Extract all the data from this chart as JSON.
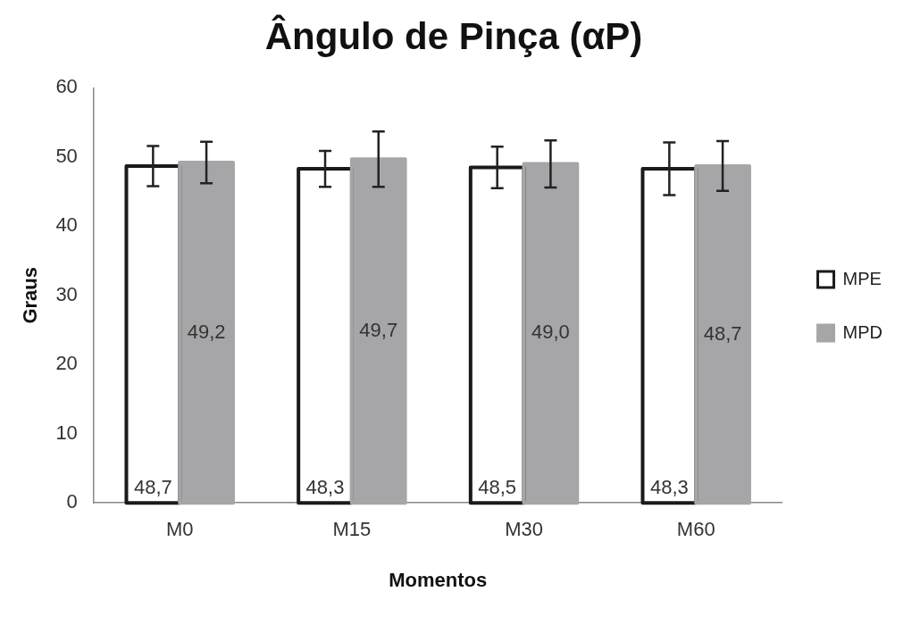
{
  "chart_data": {
    "type": "bar",
    "title": "Ângulo de Pinça (αP)",
    "xlabel": "Momentos",
    "ylabel": "Graus",
    "categories": [
      "M0",
      "M15",
      "M30",
      "M60"
    ],
    "series": [
      {
        "name": "MPE",
        "color": "#1a1a1a",
        "values": [
          48.7,
          48.3,
          48.5,
          48.3
        ],
        "errors": [
          2.9,
          2.6,
          3.0,
          3.8
        ],
        "value_labels": [
          "48,7",
          "48,3",
          "48,5",
          "48,3"
        ]
      },
      {
        "name": "MPD",
        "color": "#a6a6a8",
        "values": [
          49.2,
          49.7,
          49.0,
          48.7
        ],
        "errors": [
          3.0,
          4.0,
          3.4,
          3.6
        ],
        "value_labels": [
          "49,2",
          "49,7",
          "49,0",
          "48,7"
        ]
      }
    ],
    "ylim": [
      0,
      60
    ],
    "yticks": [
      0,
      10,
      20,
      30,
      40,
      50,
      60
    ],
    "grid": false,
    "legend": "right"
  }
}
